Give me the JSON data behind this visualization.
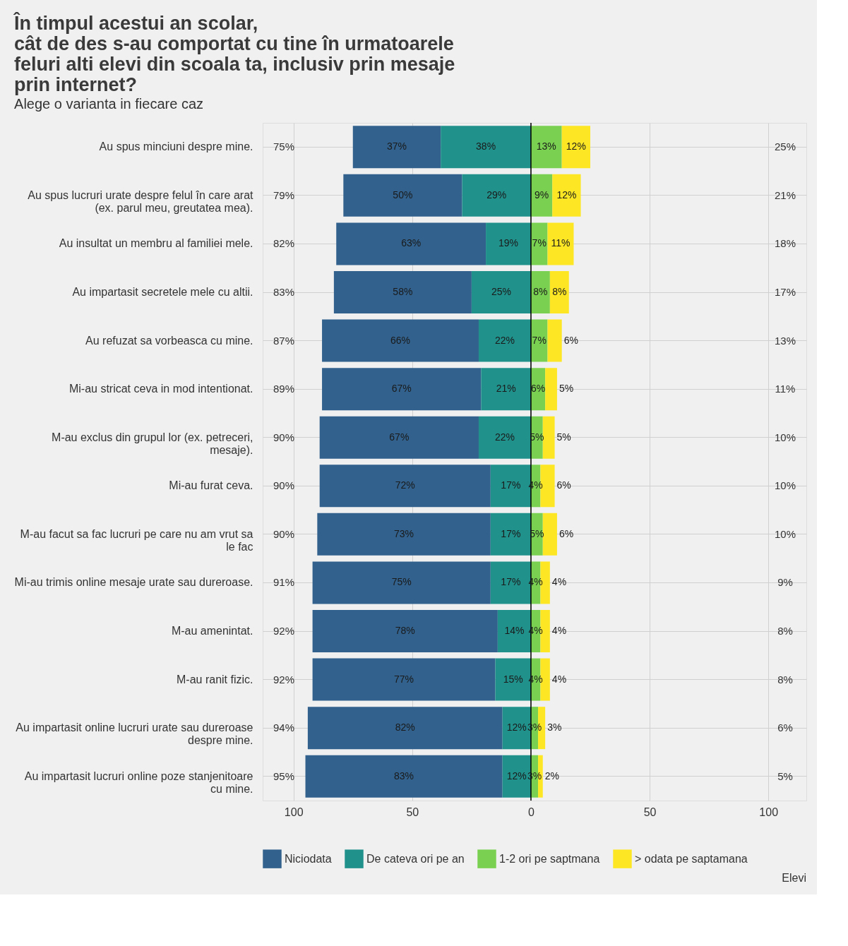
{
  "chart_data": {
    "type": "bar",
    "orientation": "horizontal",
    "title": [
      "În timpul acestui an scolar,",
      "  cât de des s-au comportat cu tine în urmatoarele",
      "  feluri alti elevi din scoala ta, inclusiv prin mesaje",
      "prin internet?"
    ],
    "subtitle": "Alege o varianta in fiecare caz",
    "categories": [
      "Au spus minciuni despre mine.",
      "Au spus lucruri urate despre felul în care arat\n(ex. parul meu, greutatea mea).",
      "Au insultat un membru al familiei mele.",
      "Au impartasit secretele mele cu altii.",
      "Au refuzat sa vorbeasca cu mine.",
      "Mi-au stricat ceva in mod intentionat.",
      "M-au exclus din grupul lor (ex. petreceri,\nmesaje).",
      "Mi-au furat ceva.",
      "M-au facut sa fac lucruri pe care nu am vrut sa\nle fac",
      "Mi-au trimis online mesaje urate sau dureroase.",
      "M-au amenintat.",
      "M-au ranit fizic.",
      "Au impartasit online lucruri urate sau dureroase\ndespre mine.",
      "Au impartasit lucruri online poze stanjenitoare\ncu mine."
    ],
    "series": [
      {
        "name": "Niciodata",
        "color": "#31618c",
        "values": [
          37,
          50,
          63,
          58,
          66,
          67,
          67,
          72,
          73,
          75,
          78,
          77,
          82,
          83
        ],
        "base": [
          -75,
          -79,
          -82,
          -83,
          -88,
          -88,
          -89,
          -89,
          -90,
          -92,
          -92,
          -92,
          -94,
          -95
        ],
        "value_labels": [
          "37%",
          "50%",
          "63%",
          "58%",
          "66%",
          "67%",
          "67%",
          "72%",
          "73%",
          "75%",
          "78%",
          "77%",
          "82%",
          "83%"
        ]
      },
      {
        "name": "De cateva ori pe an",
        "color": "#21918c",
        "values": [
          38,
          29,
          19,
          25,
          22,
          21,
          22,
          17,
          17,
          17,
          14,
          15,
          12,
          12
        ],
        "base": [
          -38,
          -29,
          -19,
          -25,
          -22,
          -21,
          -22,
          -17,
          -17,
          -17,
          -14,
          -15,
          -12,
          -12
        ],
        "value_labels": [
          "38%",
          "29%",
          "19%",
          "25%",
          "22%",
          "21%",
          "22%",
          "17%",
          "17%",
          "17%",
          "14%",
          "15%",
          "12%",
          "12%"
        ]
      },
      {
        "name": "1-2 ori pe saptmana",
        "color": "#7ad151",
        "values": [
          13,
          9,
          7,
          8,
          7,
          6,
          5,
          4,
          5,
          4,
          4,
          4,
          3,
          3
        ],
        "base": [
          0,
          0,
          0,
          0,
          0,
          0,
          0,
          0,
          0,
          0,
          0,
          0,
          0,
          0
        ],
        "value_labels": [
          "13%",
          "9%",
          "7%",
          "8%",
          "7%",
          "6%",
          "5%",
          "4%",
          "5%",
          "4%",
          "4%",
          "4%",
          "3%",
          "3%"
        ]
      },
      {
        "name": "> odata pe saptamana",
        "color": "#fde725",
        "values": [
          12,
          12,
          11,
          8,
          6,
          5,
          5,
          6,
          6,
          4,
          4,
          4,
          3,
          2
        ],
        "base": [
          13,
          9,
          7,
          8,
          7,
          6,
          5,
          4,
          5,
          4,
          4,
          4,
          3,
          3
        ],
        "value_labels": [
          "12%",
          "12%",
          "11%",
          "8%",
          "6%",
          "5%",
          "5%",
          "6%",
          "6%",
          "4%",
          "4%",
          "4%",
          "3%",
          "2%"
        ]
      }
    ],
    "xlim": [
      -113,
      116
    ],
    "xticks": [
      {
        "value": -100,
        "label": "100"
      },
      {
        "value": -50,
        "label": "50"
      },
      0,
      50,
      100
    ],
    "grid": true,
    "legend": "bottom",
    "ref_lines": [
      {
        "axis": "x",
        "value": 0,
        "color": "#000000"
      }
    ],
    "annotations": [
      "75%",
      "79%",
      "82%",
      "83%",
      "87%",
      "89%",
      "90%",
      "90%",
      "90%",
      "91%",
      "92%",
      "92%",
      "94%",
      "95%",
      "25%",
      "21%",
      "18%",
      "17%",
      "13%",
      "11%",
      "10%",
      "10%",
      "10%",
      "9%",
      "8%",
      "8%",
      "6%",
      "5%",
      "Elevi"
    ]
  }
}
